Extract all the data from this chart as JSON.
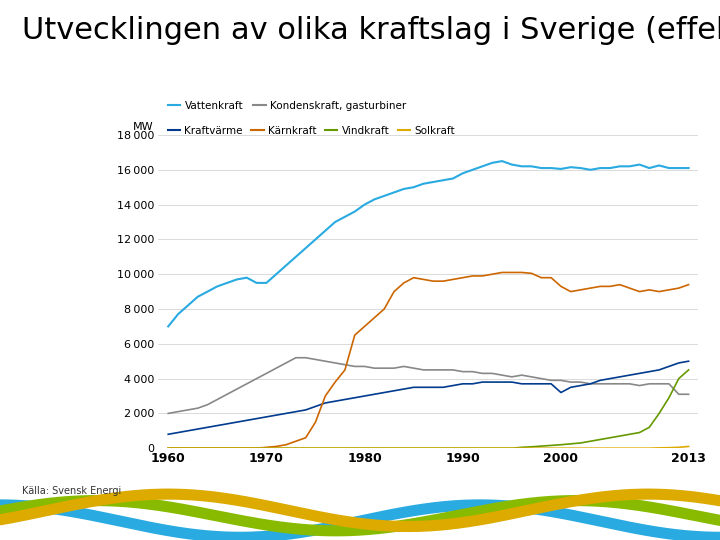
{
  "title": "Utvecklingen av olika kraftslag i Sverige (effekt)",
  "source": "Källa: Svensk Energi",
  "ylabel": "MW",
  "ylim": [
    0,
    18000
  ],
  "yticks": [
    0,
    2000,
    4000,
    6000,
    8000,
    10000,
    12000,
    14000,
    16000,
    18000
  ],
  "xlim": [
    1959,
    2014
  ],
  "xticks": [
    1960,
    1970,
    1980,
    1990,
    2000,
    2013
  ],
  "series": {
    "Vattenkraft": {
      "color": "#29AAE1",
      "lw": 1.5,
      "years": [
        1960,
        1961,
        1962,
        1963,
        1964,
        1965,
        1966,
        1967,
        1968,
        1969,
        1970,
        1971,
        1972,
        1973,
        1974,
        1975,
        1976,
        1977,
        1978,
        1979,
        1980,
        1981,
        1982,
        1983,
        1984,
        1985,
        1986,
        1987,
        1988,
        1989,
        1990,
        1991,
        1992,
        1993,
        1994,
        1995,
        1996,
        1997,
        1998,
        1999,
        2000,
        2001,
        2002,
        2003,
        2004,
        2005,
        2006,
        2007,
        2008,
        2009,
        2010,
        2011,
        2012,
        2013
      ],
      "values": [
        7000,
        7700,
        8200,
        8700,
        9000,
        9300,
        9500,
        9700,
        9800,
        9500,
        9500,
        10000,
        10500,
        11000,
        11500,
        12000,
        12500,
        13000,
        13300,
        13600,
        14000,
        14300,
        14500,
        14700,
        14900,
        15000,
        15200,
        15300,
        15400,
        15500,
        15800,
        16000,
        16200,
        16400,
        16500,
        16300,
        16200,
        16200,
        16100,
        16100,
        16050,
        16150,
        16100,
        16000,
        16100,
        16100,
        16200,
        16200,
        16300,
        16100,
        16250,
        16100,
        16100,
        16100
      ]
    },
    "Kondenskraft, gasturbiner": {
      "color": "#888888",
      "lw": 1.2,
      "years": [
        1960,
        1961,
        1962,
        1963,
        1964,
        1965,
        1966,
        1967,
        1968,
        1969,
        1970,
        1971,
        1972,
        1973,
        1974,
        1975,
        1976,
        1977,
        1978,
        1979,
        1980,
        1981,
        1982,
        1983,
        1984,
        1985,
        1986,
        1987,
        1988,
        1989,
        1990,
        1991,
        1992,
        1993,
        1994,
        1995,
        1996,
        1997,
        1998,
        1999,
        2000,
        2001,
        2002,
        2003,
        2004,
        2005,
        2006,
        2007,
        2008,
        2009,
        2010,
        2011,
        2012,
        2013
      ],
      "values": [
        2000,
        2100,
        2200,
        2300,
        2500,
        2800,
        3100,
        3400,
        3700,
        4000,
        4300,
        4600,
        4900,
        5200,
        5200,
        5100,
        5000,
        4900,
        4800,
        4700,
        4700,
        4600,
        4600,
        4600,
        4700,
        4600,
        4500,
        4500,
        4500,
        4500,
        4400,
        4400,
        4300,
        4300,
        4200,
        4100,
        4200,
        4100,
        4000,
        3900,
        3900,
        3800,
        3800,
        3700,
        3700,
        3700,
        3700,
        3700,
        3600,
        3700,
        3700,
        3700,
        3100,
        3100
      ]
    },
    "Kraftvärme": {
      "color": "#003B8E",
      "lw": 1.2,
      "years": [
        1960,
        1961,
        1962,
        1963,
        1964,
        1965,
        1966,
        1967,
        1968,
        1969,
        1970,
        1971,
        1972,
        1973,
        1974,
        1975,
        1976,
        1977,
        1978,
        1979,
        1980,
        1981,
        1982,
        1983,
        1984,
        1985,
        1986,
        1987,
        1988,
        1989,
        1990,
        1991,
        1992,
        1993,
        1994,
        1995,
        1996,
        1997,
        1998,
        1999,
        2000,
        2001,
        2002,
        2003,
        2004,
        2005,
        2006,
        2007,
        2008,
        2009,
        2010,
        2011,
        2012,
        2013
      ],
      "values": [
        800,
        900,
        1000,
        1100,
        1200,
        1300,
        1400,
        1500,
        1600,
        1700,
        1800,
        1900,
        2000,
        2100,
        2200,
        2400,
        2600,
        2700,
        2800,
        2900,
        3000,
        3100,
        3200,
        3300,
        3400,
        3500,
        3500,
        3500,
        3500,
        3600,
        3700,
        3700,
        3800,
        3800,
        3800,
        3800,
        3700,
        3700,
        3700,
        3700,
        3200,
        3500,
        3600,
        3700,
        3900,
        4000,
        4100,
        4200,
        4300,
        4400,
        4500,
        4700,
        4900,
        5000
      ]
    },
    "Kärnkraft": {
      "color": "#CC6600",
      "lw": 1.2,
      "years": [
        1960,
        1961,
        1962,
        1963,
        1964,
        1965,
        1966,
        1967,
        1968,
        1969,
        1970,
        1971,
        1972,
        1973,
        1974,
        1975,
        1976,
        1977,
        1978,
        1979,
        1980,
        1981,
        1982,
        1983,
        1984,
        1985,
        1986,
        1987,
        1988,
        1989,
        1990,
        1991,
        1992,
        1993,
        1994,
        1995,
        1996,
        1997,
        1998,
        1999,
        2000,
        2001,
        2002,
        2003,
        2004,
        2005,
        2006,
        2007,
        2008,
        2009,
        2010,
        2011,
        2012,
        2013
      ],
      "values": [
        0,
        0,
        0,
        0,
        0,
        0,
        0,
        0,
        0,
        0,
        50,
        100,
        200,
        400,
        600,
        1500,
        3000,
        3800,
        4500,
        6500,
        7000,
        7500,
        8000,
        9000,
        9500,
        9800,
        9700,
        9600,
        9600,
        9700,
        9800,
        9900,
        9900,
        10000,
        10100,
        10100,
        10100,
        10050,
        9800,
        9800,
        9300,
        9000,
        9100,
        9200,
        9300,
        9300,
        9400,
        9200,
        9000,
        9100,
        9000,
        9100,
        9200,
        9400
      ]
    },
    "Vindkraft": {
      "color": "#669900",
      "lw": 1.2,
      "years": [
        1960,
        1961,
        1962,
        1963,
        1964,
        1965,
        1966,
        1967,
        1968,
        1969,
        1970,
        1971,
        1972,
        1973,
        1974,
        1975,
        1976,
        1977,
        1978,
        1979,
        1980,
        1981,
        1982,
        1983,
        1984,
        1985,
        1986,
        1987,
        1988,
        1989,
        1990,
        1991,
        1992,
        1993,
        1994,
        1995,
        1996,
        1997,
        1998,
        1999,
        2000,
        2001,
        2002,
        2003,
        2004,
        2005,
        2006,
        2007,
        2008,
        2009,
        2010,
        2011,
        2012,
        2013
      ],
      "values": [
        0,
        0,
        0,
        0,
        0,
        0,
        0,
        0,
        0,
        0,
        0,
        0,
        0,
        0,
        0,
        0,
        0,
        0,
        0,
        0,
        0,
        0,
        0,
        0,
        0,
        0,
        0,
        0,
        0,
        0,
        0,
        0,
        0,
        0,
        0,
        0,
        50,
        80,
        120,
        160,
        200,
        250,
        300,
        400,
        500,
        600,
        700,
        800,
        900,
        1200,
        2000,
        2900,
        4000,
        4500
      ]
    },
    "Solkraft": {
      "color": "#DDAA00",
      "lw": 1.2,
      "years": [
        1960,
        1961,
        1962,
        1963,
        1964,
        1965,
        1966,
        1967,
        1968,
        1969,
        1970,
        1971,
        1972,
        1973,
        1974,
        1975,
        1976,
        1977,
        1978,
        1979,
        1980,
        1981,
        1982,
        1983,
        1984,
        1985,
        1986,
        1987,
        1988,
        1989,
        1990,
        1991,
        1992,
        1993,
        1994,
        1995,
        1996,
        1997,
        1998,
        1999,
        2000,
        2001,
        2002,
        2003,
        2004,
        2005,
        2006,
        2007,
        2008,
        2009,
        2010,
        2011,
        2012,
        2013
      ],
      "values": [
        0,
        0,
        0,
        0,
        0,
        0,
        0,
        0,
        0,
        0,
        0,
        0,
        0,
        0,
        0,
        0,
        0,
        0,
        0,
        0,
        0,
        0,
        0,
        0,
        0,
        0,
        0,
        0,
        0,
        0,
        0,
        0,
        0,
        0,
        0,
        0,
        0,
        0,
        0,
        0,
        0,
        0,
        0,
        0,
        0,
        0,
        0,
        0,
        0,
        0,
        20,
        30,
        50,
        100
      ]
    }
  },
  "legend_row1": [
    [
      "Vattenkraft",
      "#29AAE1"
    ],
    [
      "Kondenskraft, gasturbiner",
      "#888888"
    ]
  ],
  "legend_row2": [
    [
      "Kraftvärme",
      "#003B8E"
    ],
    [
      "Kärnkraft",
      "#CC6600"
    ],
    [
      "Vindkraft",
      "#669900"
    ],
    [
      "Solkraft",
      "#DDAA00"
    ]
  ],
  "bg_color": "#FFFFFF",
  "title_fontsize": 22,
  "source_fontsize": 7,
  "tick_fontsize": 8,
  "legend_fontsize": 7.5
}
